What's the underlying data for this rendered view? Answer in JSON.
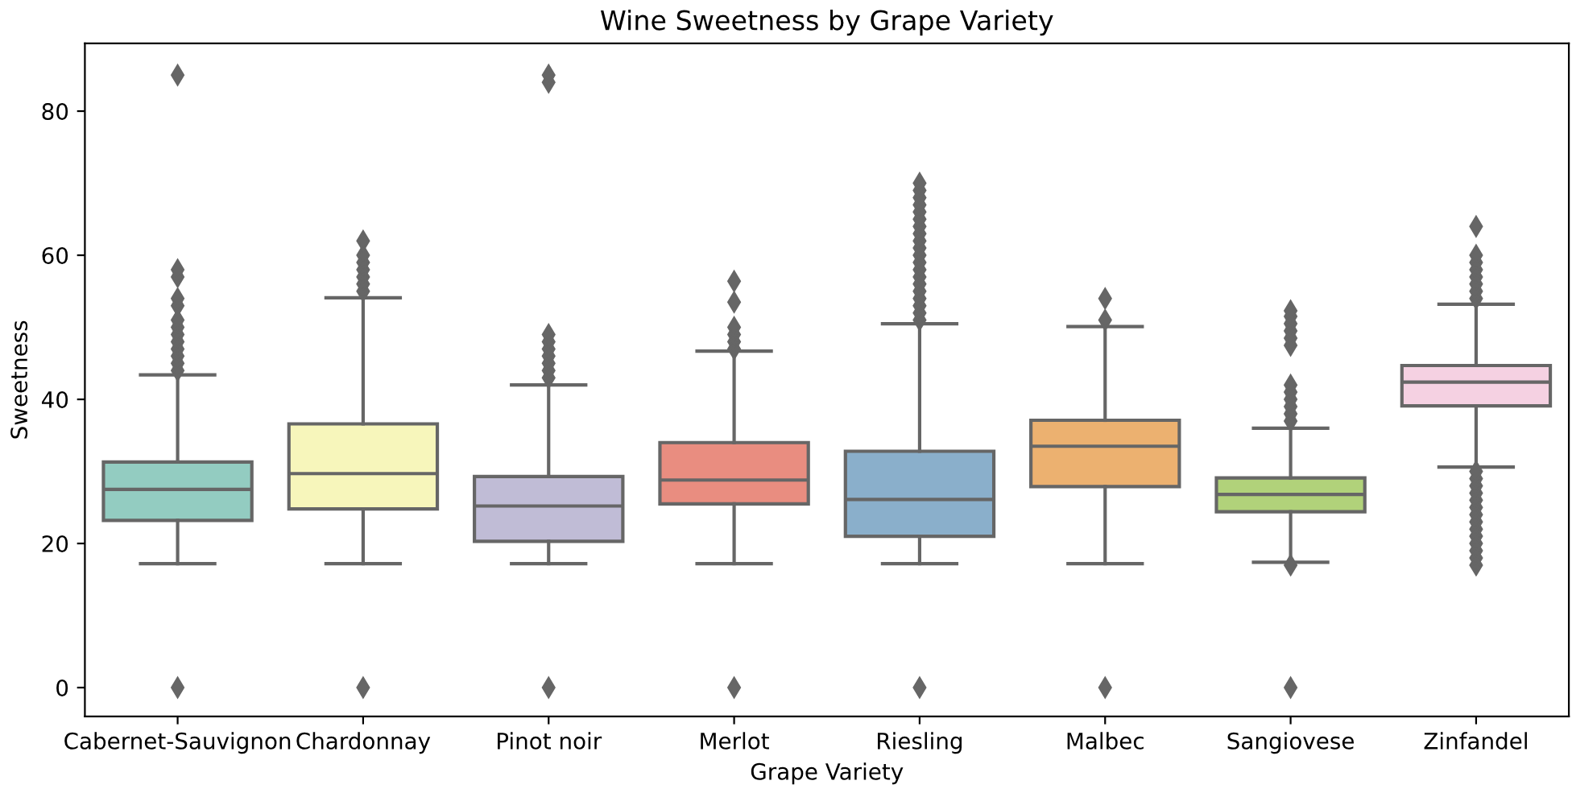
{
  "chart_data": {
    "type": "box",
    "title": "Wine Sweetness by Grape Variety",
    "xlabel": "Grape Variety",
    "ylabel": "Sweetness",
    "categories": [
      "Cabernet-Sauvignon",
      "Chardonnay",
      "Pinot noir",
      "Merlot",
      "Riesling",
      "Malbec",
      "Sangiovese",
      "Zinfandel"
    ],
    "colors": [
      "#93ccc1",
      "#f7f6bb",
      "#c0bcd6",
      "#e98d80",
      "#8aafcb",
      "#ecb170",
      "#b1d27a",
      "#f5d1e2"
    ],
    "boxes": [
      {
        "low": 17.2,
        "q1": 23.2,
        "median": 27.5,
        "q3": 31.3,
        "high": 43.4,
        "outliers": [
          0,
          44,
          45,
          46,
          47,
          48,
          49,
          50,
          51,
          53,
          54,
          57,
          58,
          85
        ]
      },
      {
        "low": 17.2,
        "q1": 24.8,
        "median": 29.7,
        "q3": 36.6,
        "high": 54.1,
        "outliers": [
          0,
          55,
          56,
          57,
          58,
          59,
          60,
          62
        ]
      },
      {
        "low": 17.2,
        "q1": 20.3,
        "median": 25.2,
        "q3": 29.3,
        "high": 42,
        "outliers": [
          0,
          43,
          44,
          45,
          46,
          47,
          48,
          49,
          84,
          85
        ]
      },
      {
        "low": 17.2,
        "q1": 25.5,
        "median": 28.8,
        "q3": 34,
        "high": 46.7,
        "outliers": [
          0,
          47,
          48,
          49,
          50,
          53.5,
          56.4
        ]
      },
      {
        "low": 17.2,
        "q1": 21,
        "median": 26.1,
        "q3": 32.8,
        "high": 50.5,
        "outliers": [
          0,
          51,
          52,
          53,
          54,
          55,
          56,
          57,
          58,
          59,
          60,
          61,
          62,
          63,
          64,
          65,
          66,
          67,
          68,
          69,
          70
        ]
      },
      {
        "low": 17.2,
        "q1": 27.9,
        "median": 33.5,
        "q3": 37.1,
        "high": 50.1,
        "outliers": [
          0,
          51,
          54
        ]
      },
      {
        "low": 17.4,
        "q1": 24.4,
        "median": 26.8,
        "q3": 29.1,
        "high": 36,
        "outliers": [
          0,
          17,
          37,
          38,
          39,
          40,
          41,
          42,
          47.5,
          48.5,
          49.5,
          50.5,
          51.5,
          52.3
        ]
      },
      {
        "low": 30.6,
        "q1": 39.1,
        "median": 42.4,
        "q3": 44.7,
        "high": 53.2,
        "outliers": [
          17,
          18,
          19,
          20,
          21,
          22,
          23,
          24,
          25,
          26,
          27,
          28,
          29,
          30,
          54,
          55,
          56,
          57,
          58,
          59,
          60,
          64
        ]
      }
    ],
    "ylim": [
      -4,
      89.4
    ],
    "yticks": [
      0,
      20,
      40,
      60,
      80
    ],
    "grid": false,
    "marker": "diamond"
  }
}
